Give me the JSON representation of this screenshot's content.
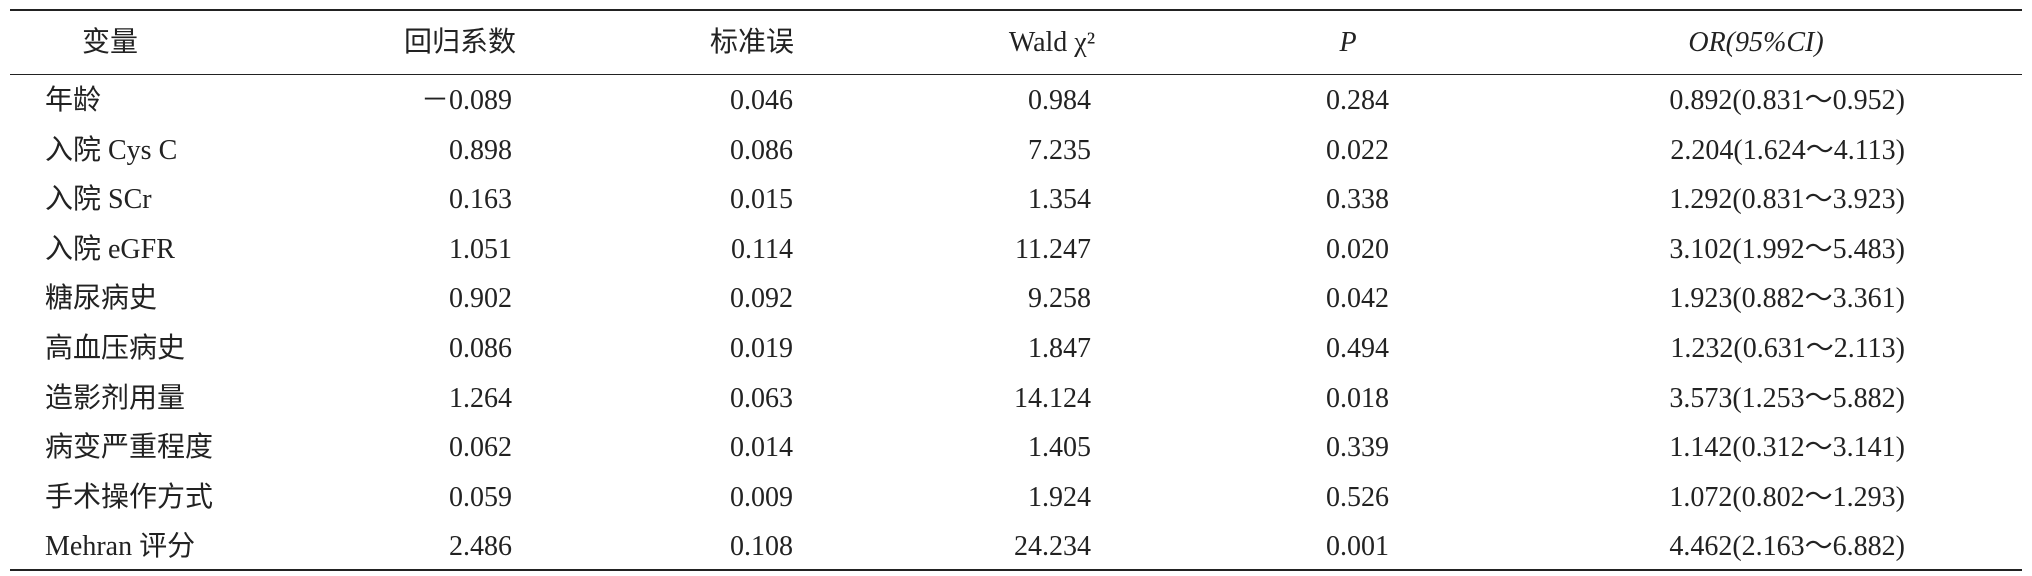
{
  "table": {
    "header": [
      "变量",
      "回归系数",
      "标准误",
      "Wald χ²",
      "P",
      "OR(95%CI)"
    ],
    "rows": [
      [
        "年龄",
        "－0.089",
        "0.046",
        "0.984",
        "0.284",
        "0.892(0.831～0.952)"
      ],
      [
        "入院 Cys C",
        "0.898",
        "0.086",
        "7.235",
        "0.022",
        "2.204(1.624～4.113)"
      ],
      [
        "入院 SCr",
        "0.163",
        "0.015",
        "1.354",
        "0.338",
        "1.292(0.831～3.923)"
      ],
      [
        "入院 eGFR",
        "1.051",
        "0.114",
        "11.247",
        "0.020",
        "3.102(1.992～5.483)"
      ],
      [
        "糖尿病史",
        "0.902",
        "0.092",
        "9.258",
        "0.042",
        "1.923(0.882～3.361)"
      ],
      [
        "高血压病史",
        "0.086",
        "0.019",
        "1.847",
        "0.494",
        "1.232(0.631～2.113)"
      ],
      [
        "造影剂用量",
        "1.264",
        "0.063",
        "14.124",
        "0.018",
        "3.573(1.253～5.882)"
      ],
      [
        "病变严重程度",
        "0.062",
        "0.014",
        "1.405",
        "0.339",
        "1.142(0.312～3.141)"
      ],
      [
        "手术操作方式",
        "0.059",
        "0.009",
        "1.924",
        "0.526",
        "1.072(0.802～1.293)"
      ],
      [
        "Mehran 评分",
        "2.486",
        "0.108",
        "24.234",
        "0.001",
        "4.462(2.163～6.882)"
      ]
    ]
  }
}
